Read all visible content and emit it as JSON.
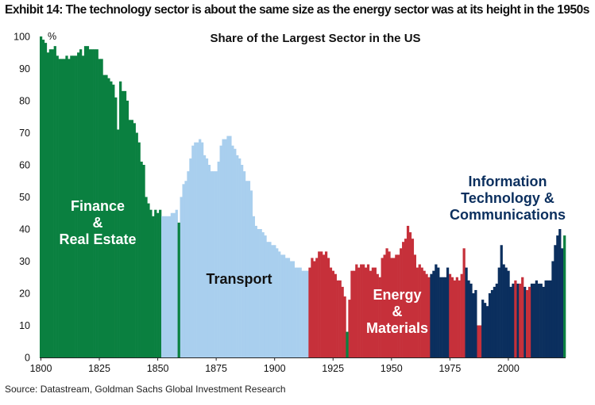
{
  "exhibit_title": "Exhibit 14: The technology sector is about the same size as the energy sector was at its height in the 1950s",
  "source": "Source: Datastream, Goldman Sachs Global Investment Research",
  "colors": {
    "finance": "#0a8040",
    "transport": "#a9cfee",
    "energy": "#c6303a",
    "tech": "#0b2f5e"
  },
  "chart_data": {
    "type": "bar",
    "title": "Share of the Largest Sector in the US",
    "ylabel": "%",
    "xlabel": "",
    "xlim": [
      1800,
      2024
    ],
    "ylim": [
      0,
      100
    ],
    "x_ticks": [
      1800,
      1825,
      1850,
      1875,
      1900,
      1925,
      1950,
      1975,
      2000
    ],
    "y_ticks": [
      0,
      10,
      20,
      30,
      40,
      50,
      60,
      70,
      80,
      90,
      100
    ],
    "grid": false,
    "legend": "none",
    "annotations": [
      {
        "sector": "finance",
        "lines": [
          "Finance",
          "&",
          "Real Estate"
        ],
        "color": "#ffffff"
      },
      {
        "sector": "transport",
        "lines": [
          "Transport"
        ],
        "color": "#111111"
      },
      {
        "sector": "energy",
        "lines": [
          "Energy",
          "&",
          "Materials"
        ],
        "color": "#ffffff"
      },
      {
        "sector": "tech",
        "lines": [
          "Information",
          "Technology &",
          "Communications"
        ],
        "color": "#0b2f5e"
      }
    ],
    "series": [
      {
        "sector": "finance",
        "x": [
          1800,
          1801,
          1802,
          1803,
          1804,
          1805,
          1806,
          1807,
          1808,
          1809,
          1810,
          1811,
          1812,
          1813,
          1814,
          1815,
          1816,
          1817,
          1818,
          1819,
          1820,
          1821,
          1822,
          1823,
          1824,
          1825,
          1826,
          1827,
          1828,
          1829,
          1830,
          1831,
          1832,
          1833,
          1834,
          1835,
          1836,
          1837,
          1838,
          1839,
          1840,
          1841,
          1842,
          1843,
          1844,
          1845,
          1846,
          1847,
          1848,
          1849,
          1850,
          1851
        ],
        "values": [
          100,
          99,
          98,
          95,
          96,
          96,
          97,
          94,
          93,
          93,
          93,
          94,
          93,
          94,
          94,
          94,
          95,
          96,
          94,
          97,
          97,
          96,
          96,
          96,
          96,
          93,
          93,
          88,
          88,
          87,
          86,
          85,
          81,
          71,
          86,
          83,
          83,
          80,
          74,
          74,
          73,
          70,
          67,
          61,
          60,
          50,
          48,
          46,
          44,
          46,
          45,
          46
        ]
      },
      {
        "sector": "transport",
        "x": [
          1852,
          1853,
          1854,
          1855,
          1856,
          1857,
          1858,
          1860,
          1861,
          1862,
          1863,
          1864,
          1865,
          1866,
          1867,
          1868,
          1869,
          1870,
          1871,
          1872,
          1873,
          1874,
          1875,
          1876,
          1877,
          1878,
          1879,
          1880,
          1881,
          1882,
          1883,
          1884,
          1885,
          1886,
          1887,
          1888,
          1889,
          1890,
          1891,
          1892,
          1893,
          1894,
          1895,
          1896,
          1897,
          1898,
          1899,
          1900,
          1901,
          1902,
          1903,
          1904,
          1905,
          1906,
          1907,
          1908,
          1909,
          1910,
          1911,
          1912,
          1913,
          1914
        ],
        "values": [
          44,
          44,
          44,
          44,
          45,
          45,
          46,
          50,
          54,
          55,
          58,
          62,
          66,
          67,
          67,
          68,
          67,
          63,
          62,
          60,
          58,
          58,
          58,
          61,
          66,
          68,
          68,
          69,
          69,
          66,
          65,
          63,
          62,
          60,
          58,
          55,
          55,
          52,
          44,
          41,
          40,
          40,
          39,
          38,
          36,
          36,
          35,
          35,
          34,
          33,
          32,
          32,
          31,
          31,
          30,
          30,
          28,
          28,
          28,
          27,
          27,
          27
        ]
      },
      {
        "sector": "finance",
        "x": [
          1859
        ],
        "values": [
          42
        ]
      },
      {
        "sector": "energy",
        "x": [
          1915,
          1916,
          1917,
          1918,
          1919,
          1920,
          1921,
          1922,
          1923,
          1924,
          1925,
          1926,
          1927,
          1928,
          1929,
          1930,
          1932,
          1933,
          1934,
          1935,
          1936,
          1937,
          1938,
          1939,
          1940,
          1941,
          1942,
          1943,
          1944,
          1945,
          1946,
          1947,
          1948,
          1949,
          1950,
          1951,
          1952,
          1953,
          1954,
          1955,
          1956,
          1957,
          1958,
          1959,
          1960,
          1961,
          1962,
          1963,
          1964,
          1965,
          1966,
          1975,
          1976,
          1977,
          1978,
          1979,
          1980,
          1981,
          1987,
          1988
        ],
        "values": [
          28,
          31,
          30,
          31,
          33,
          33,
          32,
          33,
          31,
          28,
          27,
          26,
          24,
          24,
          22,
          19,
          18,
          27,
          27,
          29,
          28,
          29,
          29,
          28,
          29,
          27,
          28,
          28,
          26,
          25,
          31,
          32,
          34,
          33,
          31,
          31,
          32,
          32,
          34,
          36,
          37,
          41,
          39,
          37,
          32,
          28,
          29,
          28,
          27,
          26,
          25,
          26,
          25,
          24,
          25,
          24,
          26,
          34,
          10,
          10
        ]
      },
      {
        "sector": "finance",
        "x": [
          1931
        ],
        "values": [
          8
        ]
      },
      {
        "sector": "tech",
        "x": [
          1967,
          1968,
          1969,
          1970,
          1971,
          1972,
          1973,
          1974,
          1982,
          1983,
          1984,
          1985,
          1986,
          1989,
          1990,
          1991,
          1992,
          1993,
          1994,
          1995,
          1996,
          1997,
          1998,
          1999,
          2000,
          2001,
          2002,
          2004,
          2007,
          2010,
          2011,
          2012,
          2013,
          2014,
          2015,
          2016,
          2017,
          2018,
          2019,
          2020,
          2021,
          2022,
          2023
        ],
        "values": [
          26,
          27,
          29,
          28,
          25,
          25,
          25,
          28,
          28,
          24,
          23,
          20,
          21,
          18,
          17,
          16,
          20,
          21,
          22,
          23,
          28,
          35,
          29,
          28,
          27,
          22,
          23,
          23,
          22,
          23,
          23,
          24,
          23,
          23,
          22,
          24,
          24,
          24,
          30,
          35,
          38,
          40,
          34
        ]
      },
      {
        "sector": "energy",
        "x": [
          2003,
          2005,
          2006,
          2008,
          2009
        ],
        "values": [
          24,
          23,
          25,
          21,
          22
        ]
      },
      {
        "sector": "finance",
        "x": [
          2024
        ],
        "values": [
          38
        ]
      }
    ]
  }
}
